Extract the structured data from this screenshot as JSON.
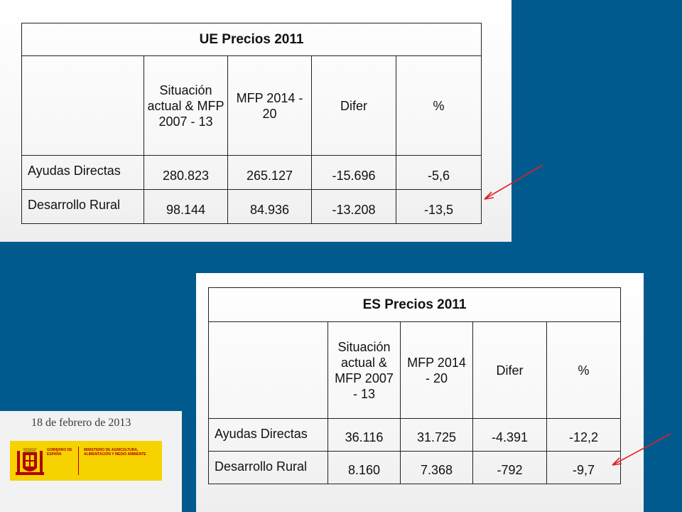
{
  "ue_table": {
    "title": "UE Precios 2011",
    "headers": [
      "Situación actual & MFP 2007 - 13",
      "MFP 2014 - 20",
      "Difer",
      "%"
    ],
    "rows": [
      {
        "label": "Ayudas Directas",
        "values": [
          "280.823",
          "265.127",
          "-15.696",
          "-5,6"
        ]
      },
      {
        "label": "Desarrollo Rural",
        "values": [
          "98.144",
          "84.936",
          "-13.208",
          "-13,5"
        ]
      }
    ]
  },
  "es_table": {
    "title": "ES Precios 2011",
    "headers": [
      "Situación actual & MFP 2007 - 13",
      "MFP 2014 - 20",
      "Difer",
      "%"
    ],
    "rows": [
      {
        "label": "Ayudas Directas",
        "values": [
          "36.116",
          "31.725",
          "-4.391",
          "-12,2"
        ]
      },
      {
        "label": "Desarrollo Rural",
        "values": [
          "8.160",
          "7.368",
          "-792",
          "-9,7"
        ]
      }
    ]
  },
  "presentation": {
    "date": "18 de febrero de 2013",
    "gov_text": "GOBIERNO DE ESPAÑA",
    "ministry_text": "MINISTERIO DE AGRICULTURA, ALIMENTACIÓN Y MEDIO AMBIENTE"
  },
  "colors": {
    "background": "#005a8e",
    "arrow": "#e02020",
    "banner": "#f6d200",
    "banner_text": "#b00000"
  }
}
